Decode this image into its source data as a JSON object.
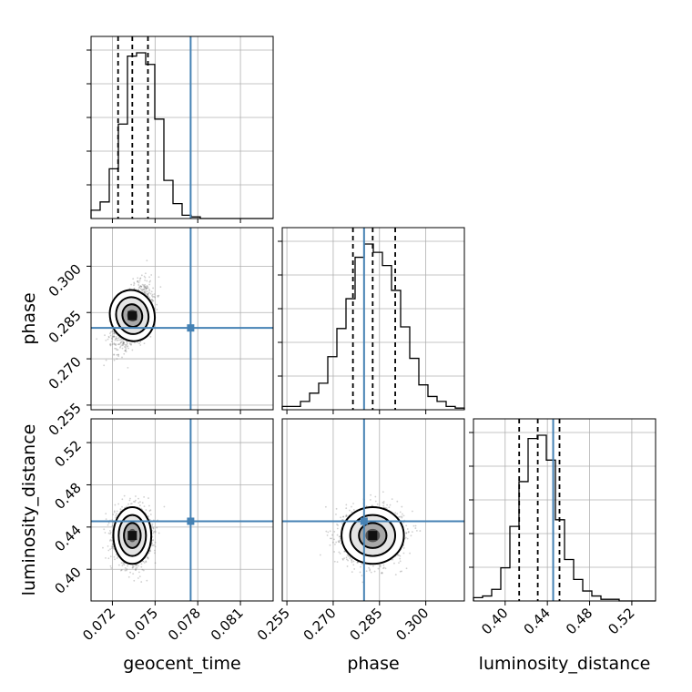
{
  "figure": {
    "parameters": [
      "geocent_time",
      "phase",
      "luminosity_distance"
    ],
    "truth_color": "#4682b4",
    "hist_color": "#000000",
    "grid": true,
    "levels": 3
  },
  "chart_data": {
    "type": "corner",
    "parameters": [
      {
        "name": "geocent_time",
        "xlabel": "geocent_time",
        "ticks": [
          "0.072",
          "0.075",
          "0.078",
          "0.081"
        ],
        "tick_values": [
          0.072,
          0.075,
          0.078,
          0.081
        ],
        "range": [
          0.0705,
          0.0833
        ],
        "truth": 0.0775,
        "quantiles": [
          0.0724,
          0.0734,
          0.0745
        ],
        "hist": [
          0.05,
          0.1,
          0.3,
          0.57,
          0.98,
          1.0,
          0.93,
          0.6,
          0.23,
          0.09,
          0.02,
          0.01,
          0,
          0,
          0,
          0,
          0,
          0,
          0,
          0
        ]
      },
      {
        "name": "phase",
        "xlabel": "phase",
        "ylabel": "phase",
        "ticks": [
          "0.255",
          "0.270",
          "0.285",
          "0.300"
        ],
        "tick_values": [
          0.255,
          0.27,
          0.285,
          0.3
        ],
        "range": [
          0.2535,
          0.3125
        ],
        "truth": 0.28,
        "quantiles": [
          0.2764,
          0.2828,
          0.2901
        ],
        "hist": [
          0.02,
          0.02,
          0.05,
          0.1,
          0.16,
          0.32,
          0.49,
          0.67,
          0.92,
          1.0,
          0.95,
          0.87,
          0.72,
          0.5,
          0.31,
          0.15,
          0.08,
          0.05,
          0.02,
          0.01
        ]
      },
      {
        "name": "luminosity_distance",
        "xlabel": "luminosity_distance",
        "ylabel": "luminosity_distance",
        "ticks": [
          "0.40",
          "0.44",
          "0.48",
          "0.52"
        ],
        "tick_values": [
          0.4,
          0.44,
          0.48,
          0.52
        ],
        "range": [
          0.37,
          0.5425
        ],
        "truth": 0.4455,
        "quantiles": [
          0.4133,
          0.4309,
          0.4515
        ],
        "hist": [
          0.02,
          0.03,
          0.07,
          0.2,
          0.45,
          0.72,
          0.98,
          1.0,
          0.85,
          0.49,
          0.25,
          0.13,
          0.06,
          0.03,
          0.01,
          0.01,
          0,
          0,
          0,
          0
        ]
      }
    ],
    "pairs": [
      {
        "x": 0,
        "y": 1,
        "center": [
          0.0734,
          0.284
        ],
        "sd": [
          0.00062,
          0.0047
        ],
        "corr": 0.5
      },
      {
        "x": 0,
        "y": 2,
        "center": [
          0.0734,
          0.432
        ],
        "sd": [
          0.00062,
          0.0125
        ],
        "corr": 0.0
      },
      {
        "x": 1,
        "y": 2,
        "center": [
          0.2828,
          0.432
        ],
        "sd": [
          0.0047,
          0.0125
        ],
        "corr": 0.0
      }
    ]
  }
}
